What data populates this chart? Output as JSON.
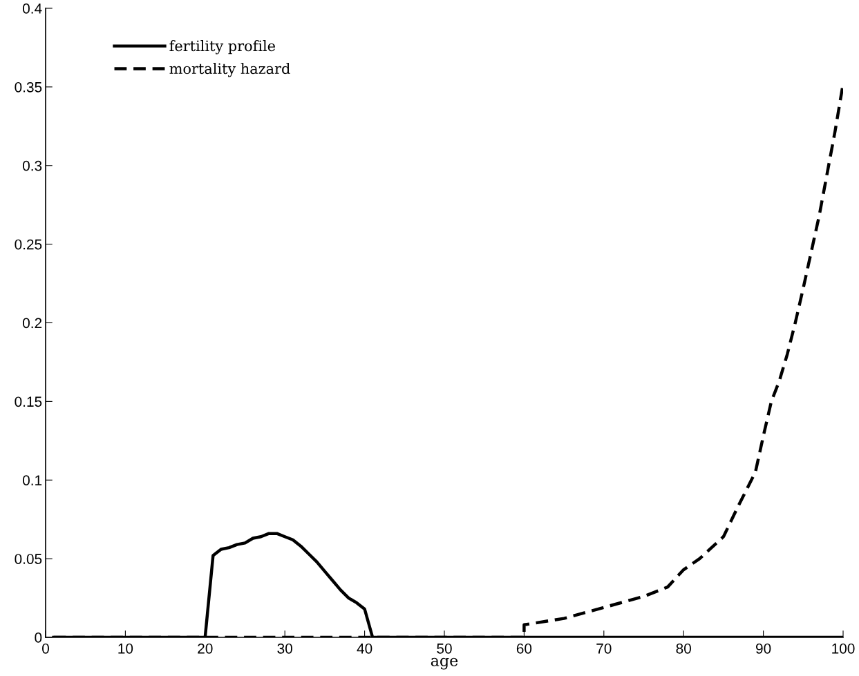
{
  "chart_data": {
    "type": "line",
    "xlabel": "age",
    "xlim": [
      0,
      100
    ],
    "ylim": [
      0,
      0.4
    ],
    "xticks": [
      0,
      10,
      20,
      30,
      40,
      50,
      60,
      70,
      80,
      90,
      100
    ],
    "yticks": [
      0,
      0.05,
      0.1,
      0.15,
      0.2,
      0.25,
      0.3,
      0.35,
      0.4
    ],
    "grid": false,
    "legend": "top left",
    "series": [
      {
        "name": "fertility profile",
        "color": "#000000",
        "line_style": "solid",
        "x": [
          1,
          20,
          21,
          22,
          23,
          24,
          25,
          26,
          27,
          28,
          29,
          30,
          31,
          32,
          33,
          34,
          35,
          36,
          37,
          38,
          39,
          40,
          41,
          100
        ],
        "values": [
          0,
          0,
          0.052,
          0.056,
          0.057,
          0.059,
          0.06,
          0.063,
          0.064,
          0.066,
          0.066,
          0.064,
          0.062,
          0.058,
          0.053,
          0.048,
          0.042,
          0.036,
          0.03,
          0.025,
          0.022,
          0.018,
          0,
          0
        ]
      },
      {
        "name": "mortality hazard",
        "color": "#000000",
        "line_style": "dashed",
        "x": [
          1,
          60,
          60,
          65,
          70,
          75,
          78,
          80,
          82,
          85,
          87,
          89,
          90,
          91,
          92,
          93,
          94,
          95,
          96,
          97,
          98,
          99,
          100
        ],
        "values": [
          0,
          0,
          0.008,
          0.012,
          0.019,
          0.026,
          0.032,
          0.043,
          0.05,
          0.064,
          0.085,
          0.105,
          0.128,
          0.15,
          0.163,
          0.18,
          0.2,
          0.222,
          0.245,
          0.268,
          0.295,
          0.322,
          0.352
        ]
      }
    ]
  }
}
